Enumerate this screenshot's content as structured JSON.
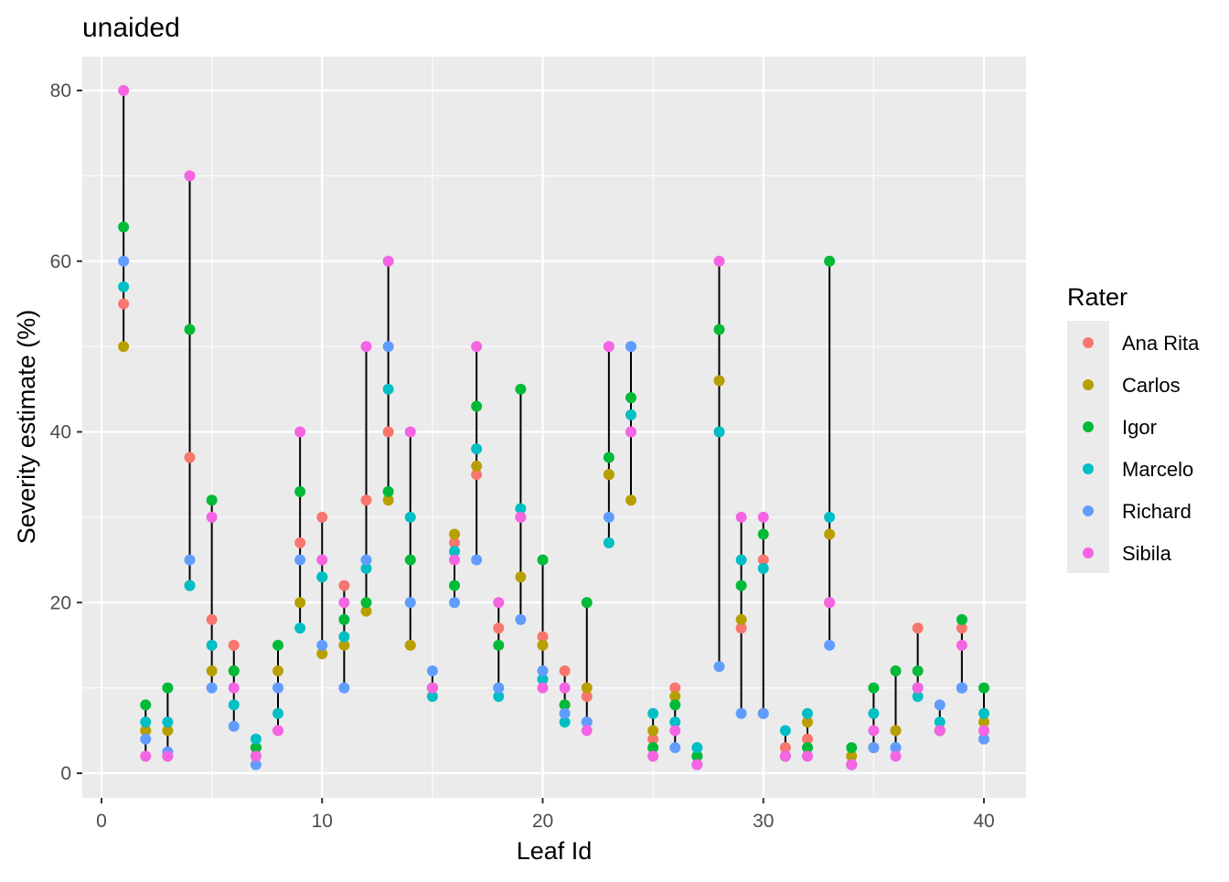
{
  "chart_data": {
    "type": "scatter",
    "title": "unaided",
    "xlabel": "Leaf Id",
    "ylabel": "Severity estimate (%)",
    "xlim": [
      -1,
      41
    ],
    "ylim": [
      -3,
      84
    ],
    "x_ticks": [
      0,
      10,
      20,
      30,
      40
    ],
    "y_ticks": [
      0,
      20,
      40,
      60,
      80
    ],
    "grid": true,
    "legend": {
      "title": "Rater",
      "position": "right"
    },
    "series": [
      {
        "name": "Ana Rita",
        "color": "#F8766D"
      },
      {
        "name": "Carlos",
        "color": "#B79F00"
      },
      {
        "name": "Igor",
        "color": "#00BA38"
      },
      {
        "name": "Marcelo",
        "color": "#00BFC4"
      },
      {
        "name": "Richard",
        "color": "#619CFF"
      },
      {
        "name": "Sibila",
        "color": "#F564E3"
      }
    ],
    "series_order_note": "values per leaf: Ana Rita, Carlos, Igor, Marcelo, Richard, Sibila",
    "leaves": [
      {
        "x": 1,
        "values": [
          55,
          50,
          64,
          57,
          60,
          80
        ]
      },
      {
        "x": 2,
        "values": [
          5,
          5,
          8,
          6,
          4,
          2
        ]
      },
      {
        "x": 3,
        "values": [
          2,
          5,
          10,
          6,
          2.5,
          2
        ]
      },
      {
        "x": 4,
        "values": [
          37,
          22,
          52,
          22,
          25,
          70
        ]
      },
      {
        "x": 5,
        "values": [
          18,
          12,
          32,
          15,
          10,
          30
        ]
      },
      {
        "x": 6,
        "values": [
          15,
          12,
          12,
          8,
          5.5,
          10
        ]
      },
      {
        "x": 7,
        "values": [
          3,
          2,
          3,
          4,
          1,
          2
        ]
      },
      {
        "x": 8,
        "values": [
          5,
          12,
          15,
          7,
          10,
          5
        ]
      },
      {
        "x": 9,
        "values": [
          27,
          20,
          33,
          17,
          25,
          40
        ]
      },
      {
        "x": 10,
        "values": [
          30,
          14,
          23,
          23,
          15,
          25
        ]
      },
      {
        "x": 11,
        "values": [
          22,
          15,
          18,
          16,
          10,
          20
        ]
      },
      {
        "x": 12,
        "values": [
          32,
          19,
          20,
          24,
          25,
          50
        ]
      },
      {
        "x": 13,
        "values": [
          40,
          32,
          33,
          45,
          50,
          60
        ]
      },
      {
        "x": 14,
        "values": [
          15,
          15,
          25,
          30,
          20,
          40
        ]
      },
      {
        "x": 15,
        "values": [
          10,
          10,
          10,
          9,
          12,
          10
        ]
      },
      {
        "x": 16,
        "values": [
          27,
          28,
          22,
          26,
          20,
          25
        ]
      },
      {
        "x": 17,
        "values": [
          35,
          36,
          43,
          38,
          25,
          50
        ]
      },
      {
        "x": 18,
        "values": [
          17,
          10,
          15,
          9,
          10,
          20
        ]
      },
      {
        "x": 19,
        "values": [
          30,
          23,
          45,
          31,
          18,
          30
        ]
      },
      {
        "x": 20,
        "values": [
          16,
          15,
          25,
          11,
          12,
          10
        ]
      },
      {
        "x": 21,
        "values": [
          12,
          8,
          8,
          6,
          7,
          10
        ]
      },
      {
        "x": 22,
        "values": [
          9,
          10,
          20,
          6,
          6,
          5
        ]
      },
      {
        "x": 23,
        "values": [
          35,
          35,
          37,
          27,
          30,
          50
        ]
      },
      {
        "x": 24,
        "values": [
          40,
          32,
          44,
          42,
          50,
          40
        ]
      },
      {
        "x": 25,
        "values": [
          4,
          5,
          3,
          7,
          2,
          2
        ]
      },
      {
        "x": 26,
        "values": [
          10,
          9,
          8,
          6,
          3,
          5
        ]
      },
      {
        "x": 27,
        "values": [
          2,
          2,
          2,
          3,
          1,
          1
        ]
      },
      {
        "x": 28,
        "values": [
          40,
          46,
          52,
          40,
          12.5,
          60
        ]
      },
      {
        "x": 29,
        "values": [
          17,
          18,
          22,
          25,
          7,
          30
        ]
      },
      {
        "x": 30,
        "values": [
          25,
          7,
          28,
          24,
          7,
          30
        ]
      },
      {
        "x": 31,
        "values": [
          3,
          2,
          2,
          5,
          2,
          2
        ]
      },
      {
        "x": 32,
        "values": [
          4,
          6,
          3,
          7,
          2,
          2
        ]
      },
      {
        "x": 33,
        "values": [
          20,
          28,
          60,
          30,
          15,
          20
        ]
      },
      {
        "x": 34,
        "values": [
          1,
          2,
          3,
          1,
          1,
          1
        ]
      },
      {
        "x": 35,
        "values": [
          3,
          3,
          10,
          7,
          3,
          5
        ]
      },
      {
        "x": 36,
        "values": [
          5,
          5,
          12,
          3,
          3,
          2
        ]
      },
      {
        "x": 37,
        "values": [
          17,
          10,
          12,
          9,
          10,
          10
        ]
      },
      {
        "x": 38,
        "values": [
          5,
          5,
          5,
          6,
          8,
          5
        ]
      },
      {
        "x": 39,
        "values": [
          17,
          10,
          18,
          10,
          10,
          15
        ]
      },
      {
        "x": 40,
        "values": [
          5,
          6,
          10,
          7,
          4,
          5
        ]
      }
    ]
  }
}
